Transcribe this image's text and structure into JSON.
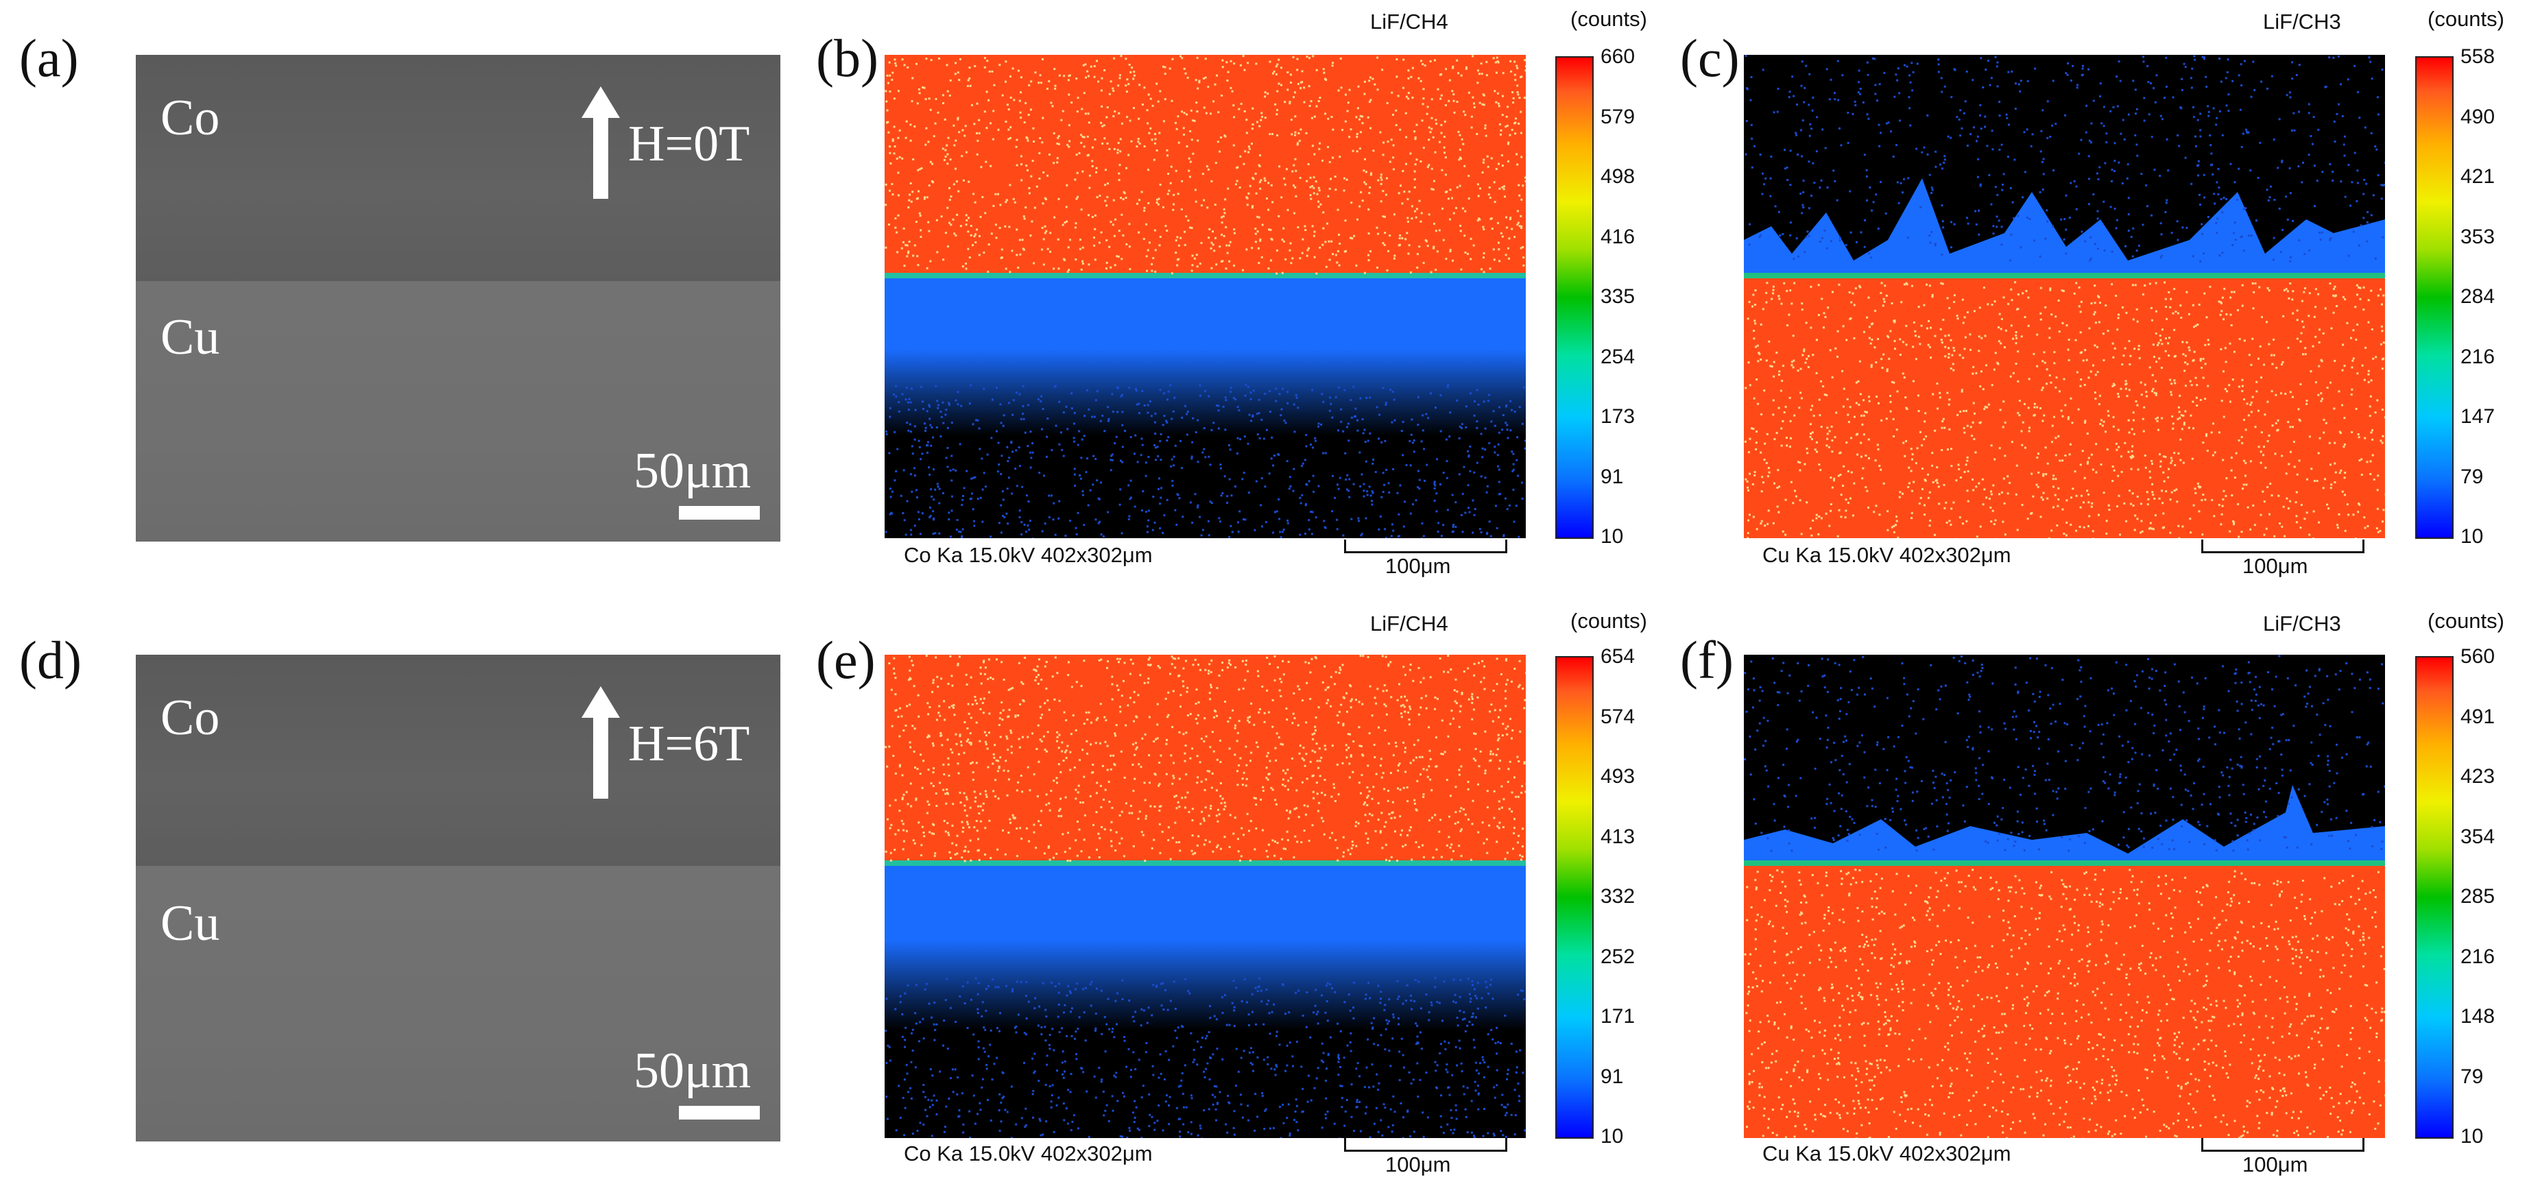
{
  "panels": [
    {
      "label": "(a)",
      "top": "Co",
      "bottom": "Cu",
      "field": "H=0T",
      "scale": "50μm"
    },
    {
      "label": "(b)",
      "detector": "LiF/CH4",
      "unit": "(counts)",
      "caption": "Co Ka 15.0kV 402x302μm",
      "scale": "100μm",
      "ticks": [
        "660",
        "579",
        "498",
        "416",
        "335",
        "254",
        "173",
        "91",
        "10"
      ]
    },
    {
      "label": "(c)",
      "detector": "LiF/CH3",
      "unit": "(counts)",
      "caption": "Cu Ka 15.0kV 402x302μm",
      "scale": "100μm",
      "ticks": [
        "558",
        "490",
        "421",
        "353",
        "284",
        "216",
        "147",
        "79",
        "10"
      ]
    },
    {
      "label": "(d)",
      "top": "Co",
      "bottom": "Cu",
      "field": "H=6T",
      "scale": "50μm"
    },
    {
      "label": "(e)",
      "detector": "LiF/CH4",
      "unit": "(counts)",
      "caption": "Co Ka 15.0kV 402x302μm",
      "scale": "100μm",
      "ticks": [
        "654",
        "574",
        "493",
        "413",
        "332",
        "252",
        "171",
        "91",
        "10"
      ]
    },
    {
      "label": "(f)",
      "detector": "LiF/CH3",
      "unit": "(counts)",
      "caption": "Cu Ka 15.0kV 402x302μm",
      "scale": "100μm",
      "ticks": [
        "560",
        "491",
        "423",
        "354",
        "285",
        "216",
        "148",
        "79",
        "10"
      ]
    }
  ],
  "colors": {
    "hot": "#ff4a18",
    "cold": "#1a6cff",
    "bg": "#000000",
    "sem": "#6a6a6a"
  }
}
